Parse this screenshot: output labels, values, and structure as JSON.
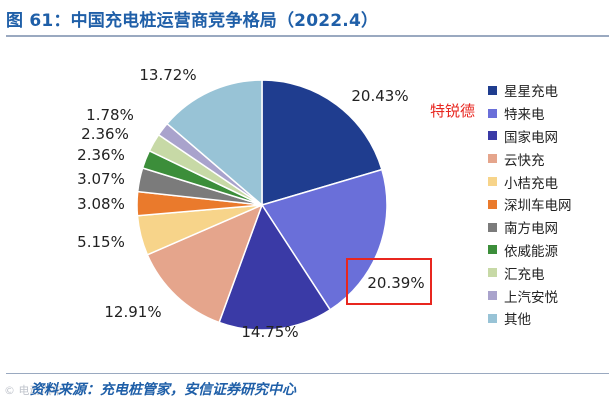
{
  "title": "图 61：中国充电桩运营商竞争格局（2022.4）",
  "source": "资料来源：充电桩管家，安信证券研究中心",
  "watermark": "© 电动汽车",
  "callout": "特锐德",
  "chart_data": {
    "type": "pie",
    "title": "中国充电桩运营商竞争格局（2022.4）",
    "start_angle_deg": 0,
    "direction": "clockwise",
    "legend_position": "right",
    "slices": [
      {
        "name": "星星充电",
        "value": 20.43,
        "label": "20.43%",
        "color": "#1f3d8f"
      },
      {
        "name": "特来电",
        "value": 20.39,
        "label": "20.39%",
        "color": "#6a6fd9"
      },
      {
        "name": "国家电网",
        "value": 14.75,
        "label": "14.75%",
        "color": "#3a3aa6"
      },
      {
        "name": "云快充",
        "value": 12.91,
        "label": "12.91%",
        "color": "#e5a58c"
      },
      {
        "name": "小桔充电",
        "value": 5.15,
        "label": "5.15%",
        "color": "#f7d48a"
      },
      {
        "name": "深圳车电网",
        "value": 3.08,
        "label": "3.08%",
        "color": "#ea7a2c"
      },
      {
        "name": "南方电网",
        "value": 3.07,
        "label": "3.07%",
        "color": "#7b7b7b"
      },
      {
        "name": "依威能源",
        "value": 2.36,
        "label": "2.36%",
        "color": "#3c8e3a"
      },
      {
        "name": "汇充电",
        "value": 2.36,
        "label": "2.36%",
        "color": "#c7d9a6"
      },
      {
        "name": "上汽安悦",
        "value": 1.78,
        "label": "1.78%",
        "color": "#a9a3cc"
      },
      {
        "name": "其他",
        "value": 13.72,
        "label": "13.72%",
        "color": "#98c3d6"
      }
    ]
  }
}
